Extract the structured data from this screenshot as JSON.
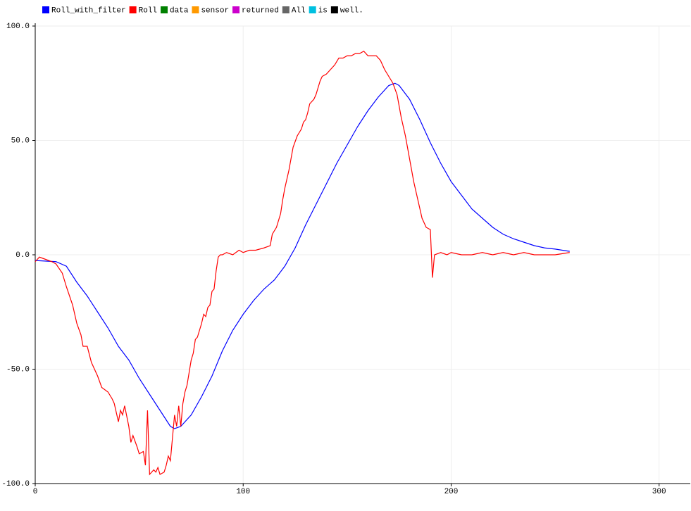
{
  "chart_data": {
    "type": "line",
    "xlim": [
      0,
      315
    ],
    "ylim": [
      -100,
      100
    ],
    "xticks": [
      0,
      100,
      200,
      300
    ],
    "yticks": [
      {
        "value": 100,
        "label": "100.0"
      },
      {
        "value": 50,
        "label": "50.0"
      },
      {
        "value": 0,
        "label": "0.0"
      },
      {
        "value": -50,
        "label": "-50.0"
      },
      {
        "value": -100,
        "label": "-100.0"
      }
    ],
    "grid": true,
    "legend": "top-left",
    "series": [
      {
        "name": "Roll_with_filter",
        "color": "#0000ff",
        "x": [
          0,
          10,
          15,
          20,
          25,
          30,
          35,
          40,
          45,
          50,
          55,
          60,
          65,
          67,
          70,
          75,
          80,
          85,
          90,
          95,
          100,
          105,
          110,
          115,
          120,
          125,
          130,
          135,
          140,
          145,
          150,
          155,
          160,
          165,
          170,
          173,
          175,
          180,
          185,
          190,
          195,
          200,
          205,
          210,
          215,
          220,
          225,
          230,
          235,
          240,
          245,
          250,
          257
        ],
        "values": [
          -2.5,
          -3,
          -5,
          -12,
          -18,
          -25,
          -32,
          -40,
          -46,
          -54,
          -61,
          -68,
          -75,
          -76,
          -75,
          -70,
          -62,
          -53,
          -42,
          -33,
          -26,
          -20,
          -15,
          -11,
          -5,
          3,
          13,
          22,
          31,
          40,
          48,
          56,
          63,
          69,
          74,
          75,
          74,
          68,
          59,
          49,
          40,
          32,
          26,
          20,
          16,
          12,
          9,
          7,
          5.5,
          4,
          3,
          2.5,
          1.5
        ]
      },
      {
        "name": "Roll",
        "color": "#ff0000",
        "x": [
          0,
          2,
          5,
          8,
          10,
          13,
          15,
          18,
          20,
          22,
          23,
          25,
          27,
          30,
          32,
          35,
          37,
          38,
          40,
          41,
          42,
          43,
          45,
          46,
          47,
          49,
          50,
          52,
          53,
          54,
          55,
          57,
          58,
          59,
          60,
          62,
          63,
          64,
          65,
          66,
          67,
          68,
          69,
          70,
          71,
          72,
          73,
          75,
          76,
          77,
          78,
          80,
          81,
          82,
          83,
          84,
          85,
          86,
          87,
          88,
          89,
          90,
          92,
          95,
          98,
          100,
          103,
          106,
          110,
          113,
          114,
          116,
          118,
          119,
          120,
          122,
          124,
          126,
          128,
          129,
          130,
          131,
          132,
          134,
          135,
          136,
          137,
          138,
          140,
          142,
          144,
          146,
          148,
          150,
          152,
          154,
          156,
          158,
          160,
          162,
          164,
          166,
          168,
          170,
          172,
          174,
          176,
          178,
          180,
          182,
          184,
          186,
          188,
          190,
          191,
          192,
          195,
          198,
          200,
          205,
          210,
          215,
          220,
          225,
          230,
          235,
          240,
          245,
          250,
          257
        ],
        "values": [
          -3,
          -1,
          -2,
          -3,
          -4,
          -8,
          -14,
          -22,
          -30,
          -35,
          -40,
          -40,
          -47,
          -53,
          -58,
          -60,
          -63,
          -65,
          -73,
          -68,
          -70,
          -66,
          -75,
          -82,
          -79,
          -84,
          -87,
          -86,
          -92,
          -68,
          -96,
          -94,
          -95,
          -93,
          -96,
          -95,
          -92,
          -88,
          -90,
          -80,
          -70,
          -75,
          -66,
          -75,
          -65,
          -60,
          -57,
          -46,
          -43,
          -37,
          -36,
          -30,
          -26,
          -27,
          -23,
          -22,
          -16,
          -15,
          -7,
          -1,
          0,
          0,
          1,
          0,
          2,
          1,
          2,
          2,
          3,
          4,
          9,
          12,
          18,
          24,
          29,
          37,
          47,
          52,
          55,
          58,
          59,
          62,
          66,
          68,
          70,
          73,
          76,
          78,
          79,
          81,
          83,
          86,
          86,
          87,
          87,
          88,
          88,
          89,
          87,
          87,
          87,
          85,
          81,
          78,
          75,
          70,
          60,
          52,
          42,
          32,
          24,
          16,
          12,
          11,
          -10,
          0,
          1,
          0,
          1,
          0,
          0,
          1,
          0,
          1,
          0,
          1,
          0,
          0,
          0,
          1
        ]
      },
      {
        "name": "data",
        "color": "#008000",
        "values": []
      },
      {
        "name": "sensor",
        "color": "#ff9900",
        "values": []
      },
      {
        "name": "returned",
        "color": "#cc00cc",
        "values": []
      },
      {
        "name": "All",
        "color": "#666666",
        "values": []
      },
      {
        "name": "is",
        "color": "#00c0e0",
        "values": []
      },
      {
        "name": "well.",
        "color": "#000000",
        "values": []
      }
    ]
  }
}
